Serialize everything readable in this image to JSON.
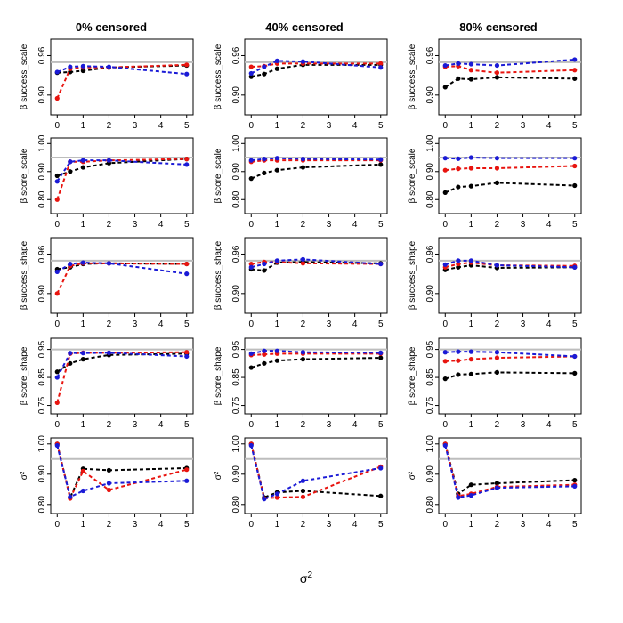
{
  "column_titles": [
    "0% censored",
    "40% censored",
    "80% censored"
  ],
  "row_labels": [
    "β success_scale",
    "β score_scale",
    "β success_shape",
    "β score_shape",
    "σ²"
  ],
  "x_label": "σ",
  "x_label_sup": "2",
  "x_ticks": [
    0,
    1,
    2,
    3,
    4,
    5
  ],
  "colors": {
    "black": "#000000",
    "red": "#e8140f",
    "blue": "#1a1ad6",
    "ref_line": "#bdbdbd"
  },
  "chart_data": [
    {
      "type": "line",
      "row": 0,
      "col": 0,
      "ylabel": "β success_scale",
      "ylim": [
        0.87,
        0.985
      ],
      "yticks": [
        "0.90",
        "0.96"
      ],
      "ref": 0.95,
      "x": [
        0,
        0.5,
        1,
        2,
        5
      ],
      "series": [
        {
          "name": "black",
          "values": [
            0.934,
            0.935,
            0.937,
            0.942,
            0.945
          ]
        },
        {
          "name": "red",
          "values": [
            0.895,
            0.94,
            0.942,
            0.942,
            0.946
          ]
        },
        {
          "name": "blue",
          "values": [
            0.935,
            0.943,
            0.944,
            0.943,
            0.932
          ]
        }
      ]
    },
    {
      "type": "line",
      "row": 0,
      "col": 1,
      "ylabel": "β success_scale",
      "ylim": [
        0.87,
        0.985
      ],
      "yticks": [
        "0.90",
        "0.96"
      ],
      "ref": 0.95,
      "x": [
        0,
        0.5,
        1,
        2,
        5
      ],
      "series": [
        {
          "name": "black",
          "values": [
            0.928,
            0.932,
            0.94,
            0.946,
            0.946
          ]
        },
        {
          "name": "red",
          "values": [
            0.943,
            0.944,
            0.948,
            0.948,
            0.948
          ]
        },
        {
          "name": "blue",
          "values": [
            0.933,
            0.943,
            0.952,
            0.951,
            0.942
          ]
        }
      ]
    },
    {
      "type": "line",
      "row": 0,
      "col": 2,
      "ylabel": "β success_scale",
      "ylim": [
        0.87,
        0.985
      ],
      "yticks": [
        "0.90",
        "0.96"
      ],
      "ref": 0.95,
      "x": [
        0,
        0.5,
        1,
        2,
        5
      ],
      "series": [
        {
          "name": "black",
          "values": [
            0.912,
            0.925,
            0.924,
            0.927,
            0.925
          ]
        },
        {
          "name": "red",
          "values": [
            0.943,
            0.944,
            0.938,
            0.934,
            0.938
          ]
        },
        {
          "name": "blue",
          "values": [
            0.945,
            0.948,
            0.947,
            0.945,
            0.954
          ]
        }
      ]
    },
    {
      "type": "line",
      "row": 1,
      "col": 0,
      "ylabel": "β score_scale",
      "ylim": [
        0.75,
        1.02
      ],
      "yticks": [
        "0.80",
        "0.90",
        "1.00"
      ],
      "ref": 0.95,
      "x": [
        0,
        0.5,
        1,
        2,
        5
      ],
      "series": [
        {
          "name": "black",
          "values": [
            0.885,
            0.9,
            0.915,
            0.93,
            0.945
          ]
        },
        {
          "name": "red",
          "values": [
            0.8,
            0.935,
            0.935,
            0.94,
            0.945
          ]
        },
        {
          "name": "blue",
          "values": [
            0.865,
            0.935,
            0.94,
            0.94,
            0.925
          ]
        }
      ]
    },
    {
      "type": "line",
      "row": 1,
      "col": 1,
      "ylabel": "β score_scale",
      "ylim": [
        0.75,
        1.02
      ],
      "yticks": [
        "0.80",
        "0.90",
        "1.00"
      ],
      "ref": 0.95,
      "x": [
        0,
        0.5,
        1,
        2,
        5
      ],
      "series": [
        {
          "name": "black",
          "values": [
            0.875,
            0.895,
            0.905,
            0.915,
            0.925
          ]
        },
        {
          "name": "red",
          "values": [
            0.935,
            0.94,
            0.94,
            0.94,
            0.94
          ]
        },
        {
          "name": "blue",
          "values": [
            0.94,
            0.945,
            0.948,
            0.945,
            0.943
          ]
        }
      ]
    },
    {
      "type": "line",
      "row": 1,
      "col": 2,
      "ylabel": "β score_scale",
      "ylim": [
        0.75,
        1.02
      ],
      "yticks": [
        "0.80",
        "0.90",
        "1.00"
      ],
      "ref": 0.95,
      "x": [
        0,
        0.5,
        1,
        2,
        5
      ],
      "series": [
        {
          "name": "black",
          "values": [
            0.825,
            0.845,
            0.848,
            0.86,
            0.85
          ]
        },
        {
          "name": "red",
          "values": [
            0.905,
            0.91,
            0.912,
            0.912,
            0.92
          ]
        },
        {
          "name": "blue",
          "values": [
            0.948,
            0.946,
            0.95,
            0.948,
            0.948
          ]
        }
      ]
    },
    {
      "type": "line",
      "row": 2,
      "col": 0,
      "ylabel": "β success_shape",
      "ylim": [
        0.87,
        0.985
      ],
      "yticks": [
        "0.90",
        "0.96"
      ],
      "ref": 0.95,
      "x": [
        0,
        0.5,
        1,
        2,
        5
      ],
      "series": [
        {
          "name": "black",
          "values": [
            0.937,
            0.94,
            0.945,
            0.946,
            0.945
          ]
        },
        {
          "name": "red",
          "values": [
            0.9,
            0.942,
            0.946,
            0.946,
            0.945
          ]
        },
        {
          "name": "blue",
          "values": [
            0.933,
            0.945,
            0.947,
            0.946,
            0.93
          ]
        }
      ]
    },
    {
      "type": "line",
      "row": 2,
      "col": 1,
      "ylabel": "β success_shape",
      "ylim": [
        0.87,
        0.985
      ],
      "yticks": [
        "0.90",
        "0.96"
      ],
      "ref": 0.95,
      "x": [
        0,
        0.5,
        1,
        2,
        5
      ],
      "series": [
        {
          "name": "black",
          "values": [
            0.937,
            0.935,
            0.947,
            0.948,
            0.946
          ]
        },
        {
          "name": "red",
          "values": [
            0.945,
            0.948,
            0.948,
            0.946,
            0.945
          ]
        },
        {
          "name": "blue",
          "values": [
            0.94,
            0.945,
            0.95,
            0.952,
            0.945
          ]
        }
      ]
    },
    {
      "type": "line",
      "row": 2,
      "col": 2,
      "ylabel": "β success_shape",
      "ylim": [
        0.87,
        0.985
      ],
      "yticks": [
        "0.90",
        "0.96"
      ],
      "ref": 0.95,
      "x": [
        0,
        0.5,
        1,
        2,
        5
      ],
      "series": [
        {
          "name": "black",
          "values": [
            0.936,
            0.94,
            0.943,
            0.939,
            0.94
          ]
        },
        {
          "name": "red",
          "values": [
            0.94,
            0.945,
            0.947,
            0.943,
            0.942
          ]
        },
        {
          "name": "blue",
          "values": [
            0.944,
            0.95,
            0.95,
            0.943,
            0.94
          ]
        }
      ]
    },
    {
      "type": "line",
      "row": 3,
      "col": 0,
      "ylabel": "β score_shape",
      "ylim": [
        0.72,
        0.99
      ],
      "yticks": [
        "0.75",
        "0.85",
        "0.95"
      ],
      "ref": 0.95,
      "x": [
        0,
        0.5,
        1,
        2,
        5
      ],
      "series": [
        {
          "name": "black",
          "values": [
            0.87,
            0.9,
            0.915,
            0.93,
            0.935
          ]
        },
        {
          "name": "red",
          "values": [
            0.76,
            0.935,
            0.938,
            0.938,
            0.94
          ]
        },
        {
          "name": "blue",
          "values": [
            0.85,
            0.937,
            0.937,
            0.938,
            0.925
          ]
        }
      ]
    },
    {
      "type": "line",
      "row": 3,
      "col": 1,
      "ylabel": "β score_shape",
      "ylim": [
        0.72,
        0.99
      ],
      "yticks": [
        "0.75",
        "0.85",
        "0.95"
      ],
      "ref": 0.95,
      "x": [
        0,
        0.5,
        1,
        2,
        5
      ],
      "series": [
        {
          "name": "black",
          "values": [
            0.885,
            0.9,
            0.91,
            0.915,
            0.92
          ]
        },
        {
          "name": "red",
          "values": [
            0.93,
            0.932,
            0.935,
            0.935,
            0.935
          ]
        },
        {
          "name": "blue",
          "values": [
            0.935,
            0.945,
            0.945,
            0.94,
            0.938
          ]
        }
      ]
    },
    {
      "type": "line",
      "row": 3,
      "col": 2,
      "ylabel": "β score_shape",
      "ylim": [
        0.72,
        0.99
      ],
      "yticks": [
        "0.75",
        "0.85",
        "0.95"
      ],
      "ref": 0.95,
      "x": [
        0,
        0.5,
        1,
        2,
        5
      ],
      "series": [
        {
          "name": "black",
          "values": [
            0.845,
            0.86,
            0.862,
            0.868,
            0.865
          ]
        },
        {
          "name": "red",
          "values": [
            0.908,
            0.91,
            0.915,
            0.92,
            0.925
          ]
        },
        {
          "name": "blue",
          "values": [
            0.94,
            0.942,
            0.942,
            0.94,
            0.925
          ]
        }
      ]
    },
    {
      "type": "line",
      "row": 4,
      "col": 0,
      "ylabel": "σ²",
      "ylim": [
        0.77,
        1.02
      ],
      "yticks": [
        "0.80",
        "0.90",
        "1.00"
      ],
      "ref": 0.95,
      "x": [
        0,
        0.5,
        1,
        2,
        5
      ],
      "series": [
        {
          "name": "black",
          "values": [
            1.0,
            0.823,
            0.918,
            0.913,
            0.92
          ]
        },
        {
          "name": "red",
          "values": [
            1.0,
            0.82,
            0.91,
            0.848,
            0.915
          ]
        },
        {
          "name": "blue",
          "values": [
            0.995,
            0.825,
            0.845,
            0.87,
            0.878
          ]
        }
      ]
    },
    {
      "type": "line",
      "row": 4,
      "col": 1,
      "ylabel": "σ²",
      "ylim": [
        0.77,
        1.02
      ],
      "yticks": [
        "0.80",
        "0.90",
        "1.00"
      ],
      "ref": 0.95,
      "x": [
        0,
        0.5,
        1,
        2,
        5
      ],
      "series": [
        {
          "name": "black",
          "values": [
            1.0,
            0.823,
            0.84,
            0.845,
            0.828
          ]
        },
        {
          "name": "red",
          "values": [
            1.0,
            0.82,
            0.823,
            0.825,
            0.925
          ]
        },
        {
          "name": "blue",
          "values": [
            0.995,
            0.818,
            0.835,
            0.878,
            0.92
          ]
        }
      ]
    },
    {
      "type": "line",
      "row": 4,
      "col": 2,
      "ylabel": "σ²",
      "ylim": [
        0.77,
        1.02
      ],
      "yticks": [
        "0.80",
        "0.90",
        "1.00"
      ],
      "ref": 0.95,
      "x": [
        0,
        0.5,
        1,
        2,
        5
      ],
      "series": [
        {
          "name": "black",
          "values": [
            1.0,
            0.835,
            0.865,
            0.87,
            0.88
          ]
        },
        {
          "name": "red",
          "values": [
            1.0,
            0.828,
            0.835,
            0.858,
            0.865
          ]
        },
        {
          "name": "blue",
          "values": [
            0.995,
            0.823,
            0.83,
            0.855,
            0.86
          ]
        }
      ]
    }
  ]
}
